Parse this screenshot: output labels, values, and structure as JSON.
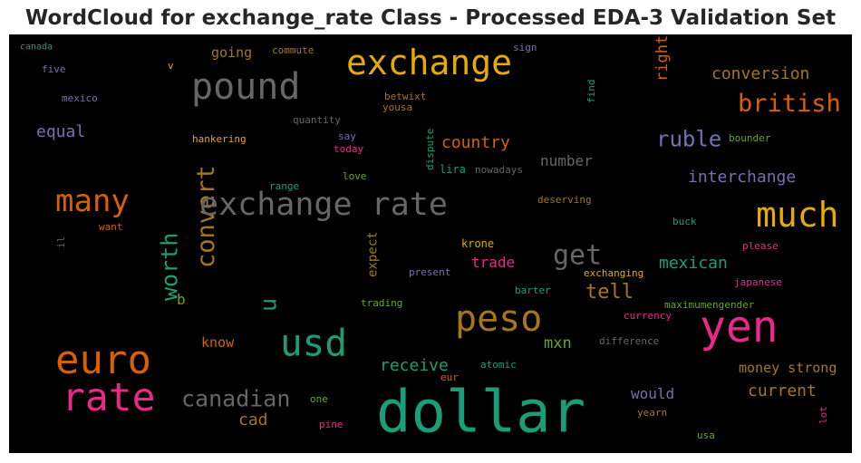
{
  "title": "WordCloud for exchange_rate Class - Processed EDA-3 Validation Set",
  "chart_data": {
    "type": "wordcloud",
    "background": "#000000",
    "words": [
      {
        "text": "canada",
        "color": "#1b9e77"
      },
      {
        "text": "five",
        "color": "#7570b3"
      },
      {
        "text": "mexico",
        "color": "#7570b3"
      },
      {
        "text": "going",
        "color": "#a6761d"
      },
      {
        "text": "commute",
        "color": "#a6761d"
      },
      {
        "text": "exchange",
        "color": "#e6ab02"
      },
      {
        "text": "sign",
        "color": "#7570b3"
      },
      {
        "text": "right",
        "color": "#d95f02"
      },
      {
        "text": "conversion",
        "color": "#a6761d"
      },
      {
        "text": "v",
        "color": "#e6ab02"
      },
      {
        "text": "pound",
        "color": "#666666"
      },
      {
        "text": "find",
        "color": "#1b9e77"
      },
      {
        "text": "betwixt",
        "color": "#a6761d"
      },
      {
        "text": "yousa",
        "color": "#a6761d"
      },
      {
        "text": "british",
        "color": "#d95f02"
      },
      {
        "text": "quantity",
        "color": "#666666"
      },
      {
        "text": "equal",
        "color": "#7570b3"
      },
      {
        "text": "hankering",
        "color": "#e6ab02"
      },
      {
        "text": "say",
        "color": "#7570b3"
      },
      {
        "text": "today",
        "color": "#e7298a"
      },
      {
        "text": "dispute",
        "color": "#1b9e77"
      },
      {
        "text": "country",
        "color": "#d95f02"
      },
      {
        "text": "ruble",
        "color": "#7570b3"
      },
      {
        "text": "bounder",
        "color": "#66a61e"
      },
      {
        "text": "number",
        "color": "#666666"
      },
      {
        "text": "lira",
        "color": "#1b9e77"
      },
      {
        "text": "nowadays",
        "color": "#666666"
      },
      {
        "text": "love",
        "color": "#66a61e"
      },
      {
        "text": "interchange",
        "color": "#7570b3"
      },
      {
        "text": "convert",
        "color": "#a6761d"
      },
      {
        "text": "many",
        "color": "#d95f02"
      },
      {
        "text": "range",
        "color": "#1b9e77"
      },
      {
        "text": "exchange rate",
        "color": "#666666"
      },
      {
        "text": "deserving",
        "color": "#a6761d"
      },
      {
        "text": "much",
        "color": "#e6ab02"
      },
      {
        "text": "buck",
        "color": "#1b9e77"
      },
      {
        "text": "il",
        "color": "#666666"
      },
      {
        "text": "want",
        "color": "#d95f02"
      },
      {
        "text": "worth",
        "color": "#1b9e77"
      },
      {
        "text": "please",
        "color": "#e7298a"
      },
      {
        "text": "get",
        "color": "#666666"
      },
      {
        "text": "krone",
        "color": "#e6ab02"
      },
      {
        "text": "expect",
        "color": "#a6761d"
      },
      {
        "text": "trade",
        "color": "#e7298a"
      },
      {
        "text": "mexican",
        "color": "#1b9e77"
      },
      {
        "text": "present",
        "color": "#7570b3"
      },
      {
        "text": "exchanging",
        "color": "#e6ab02"
      },
      {
        "text": "japanese",
        "color": "#e7298a"
      },
      {
        "text": "b",
        "color": "#66a61e"
      },
      {
        "text": "tell",
        "color": "#a6761d"
      },
      {
        "text": "barter",
        "color": "#1b9e77"
      },
      {
        "text": "trading",
        "color": "#66a61e"
      },
      {
        "text": "maximumengender",
        "color": "#66a61e"
      },
      {
        "text": "u",
        "color": "#1b9e77"
      },
      {
        "text": "peso",
        "color": "#a6761d"
      },
      {
        "text": "currency",
        "color": "#e7298a"
      },
      {
        "text": "yen",
        "color": "#e7298a"
      },
      {
        "text": "usd",
        "color": "#1b9e77"
      },
      {
        "text": "know",
        "color": "#d95f02"
      },
      {
        "text": "mxn",
        "color": "#66a61e"
      },
      {
        "text": "difference",
        "color": "#666666"
      },
      {
        "text": "euro",
        "color": "#d95f02"
      },
      {
        "text": "receive",
        "color": "#1b9e77"
      },
      {
        "text": "atomic",
        "color": "#1b9e77"
      },
      {
        "text": "money strong",
        "color": "#a6761d"
      },
      {
        "text": "eur",
        "color": "#d95f02"
      },
      {
        "text": "rate",
        "color": "#e7298a"
      },
      {
        "text": "canadian",
        "color": "#666666"
      },
      {
        "text": "current",
        "color": "#a6761d"
      },
      {
        "text": "one",
        "color": "#66a61e"
      },
      {
        "text": "would",
        "color": "#7570b3"
      },
      {
        "text": "dollar",
        "color": "#1b9e77"
      },
      {
        "text": "cad",
        "color": "#a6761d"
      },
      {
        "text": "pine",
        "color": "#e7298a"
      },
      {
        "text": "yearn",
        "color": "#a6761d"
      },
      {
        "text": "lot",
        "color": "#e7298a"
      },
      {
        "text": "usa",
        "color": "#66a61e"
      }
    ]
  }
}
